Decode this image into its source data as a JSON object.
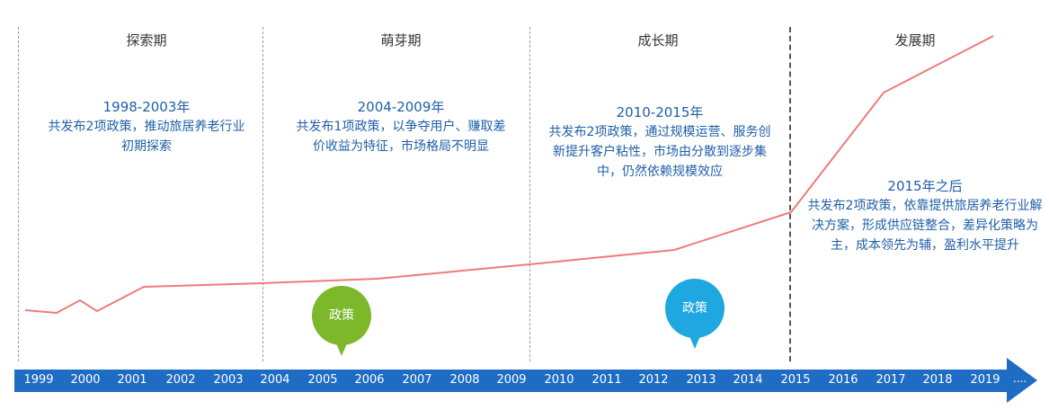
{
  "phases": [
    {
      "title": "探索期",
      "years": "1998-2003年",
      "desc": "共发布2项政策，推动旅居养老行业初期探索"
    },
    {
      "title": "萌芽期",
      "years": "2004-2009年",
      "desc": "共发布1项政策，以争夺用户、赚取差价收益为特征，市场格局不明显"
    },
    {
      "title": "成长期",
      "years": "2010-2015年",
      "desc": "共发布2项政策，通过规模运营、服务创新提升客户粘性，市场由分散到逐步集中，仍然依赖规模效应"
    },
    {
      "title": "发展期",
      "years": "2015年之后",
      "desc": "共发布2项政策，依靠提供旅居养老行业解决方案，形成供应链整合，差异化策略为主，成本领先为辅，盈利水平提升"
    }
  ],
  "markers": [
    {
      "label": "政策",
      "year": "2005",
      "color": "#7cb82a"
    },
    {
      "label": "政策",
      "year": "2013",
      "color": "#1fa7e0"
    }
  ],
  "axis": {
    "years": [
      "1999",
      "2000",
      "2001",
      "2002",
      "2003",
      "2004",
      "2005",
      "2006",
      "2007",
      "2008",
      "2009",
      "2010",
      "2011",
      "2012",
      "2013",
      "2014",
      "2015",
      "2016",
      "2017",
      "2018",
      "2019"
    ],
    "ellipsis": "....",
    "color": "#1f6cc4"
  },
  "trend": {
    "color": "#f07a7a",
    "note": "relative development trend line, no numeric axis shown"
  }
}
